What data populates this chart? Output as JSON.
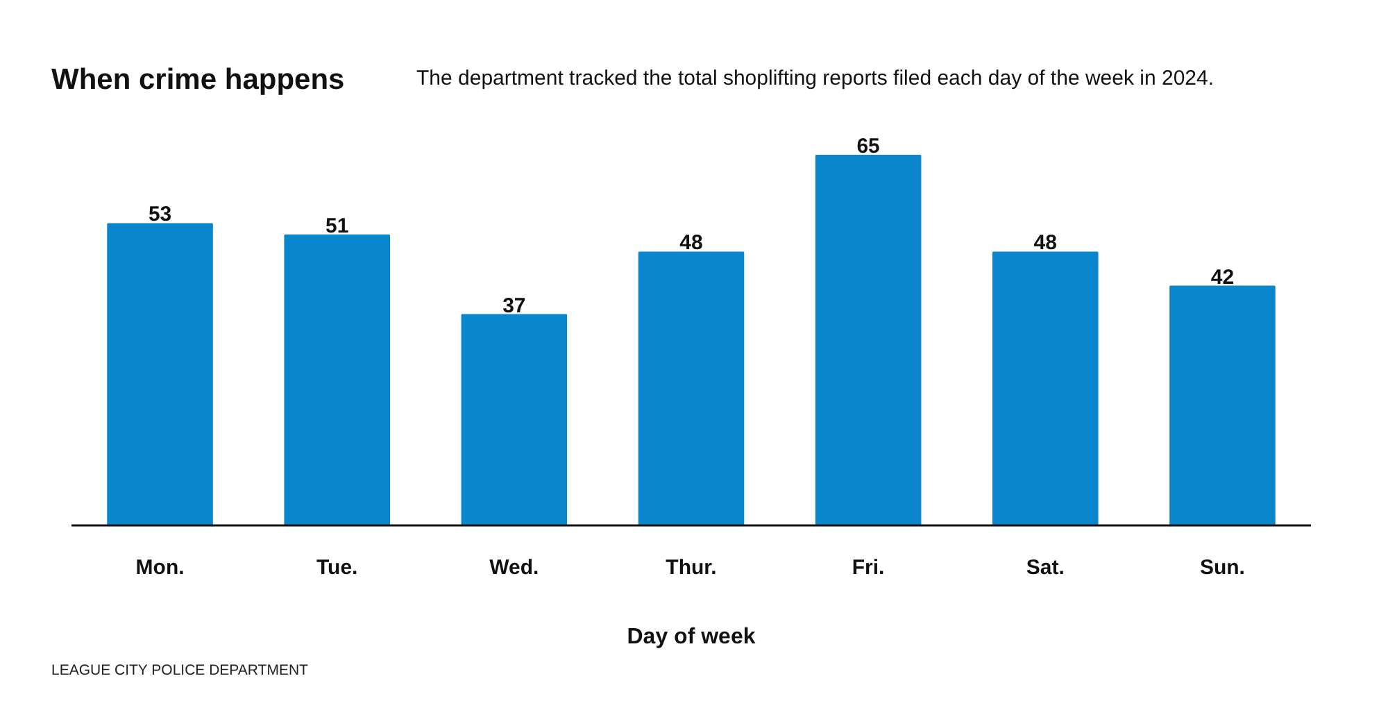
{
  "chart_data": {
    "type": "bar",
    "title": "When crime happens",
    "subtitle": "The department tracked the total shoplifting reports filed each day of the week in 2024.",
    "xlabel": "Day of week",
    "annotations": [
      "LEAGUE CITY POLICE DEPARTMENT"
    ],
    "categories": [
      "Mon.",
      "Tue.",
      "Wed.",
      "Thur.",
      "Fri.",
      "Sat.",
      "Sun."
    ],
    "values": [
      53,
      51,
      37,
      48,
      65,
      48,
      42
    ],
    "color": "#0a86cc",
    "data_labels": true,
    "tick_labels": "x"
  }
}
